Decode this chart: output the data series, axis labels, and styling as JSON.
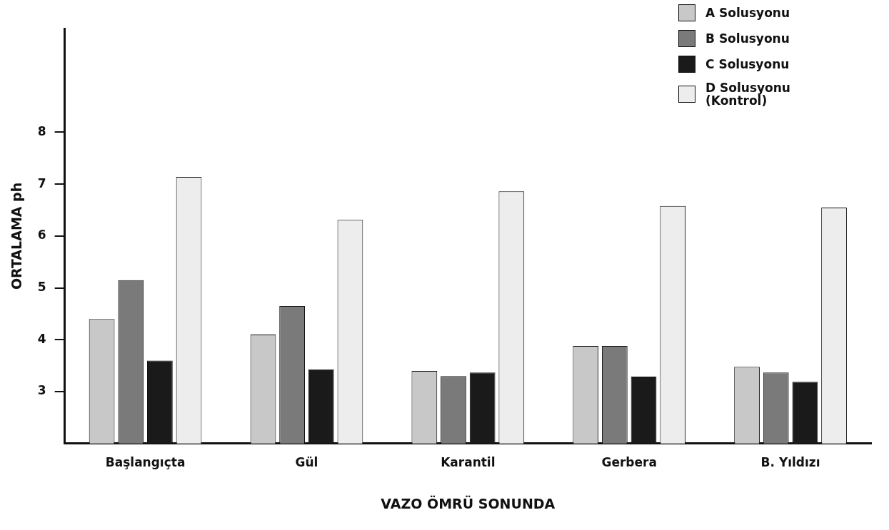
{
  "chart_data": {
    "type": "bar",
    "xlabel": "VAZO ÖMRÜ SONUNDA",
    "ylabel": "ORTALAMA ph",
    "categories": [
      "Başlangıçta",
      "Gül",
      "Karantil",
      "Gerbera",
      "B. Yıldızı"
    ],
    "series": [
      {
        "name": "A Solusyonu",
        "color": "#c8c8c8",
        "values": [
          4.4,
          4.1,
          3.4,
          3.88,
          3.48
        ]
      },
      {
        "name": "B Solusyonu",
        "color": "#7a7a7a",
        "values": [
          5.15,
          4.65,
          3.3,
          3.88,
          3.37
        ]
      },
      {
        "name": "C Solusyonu",
        "color": "#1a1a1a",
        "values": [
          3.6,
          3.43,
          3.37,
          3.29,
          3.19
        ]
      },
      {
        "name": "D Solusyonu (Kontrol)",
        "color": "#ededed",
        "values": [
          7.14,
          6.31,
          6.86,
          6.58,
          6.55
        ]
      }
    ],
    "ylim": [
      2,
      10
    ],
    "yticks": [
      3,
      4,
      5,
      6,
      7,
      8
    ],
    "grid": false,
    "legend": "top right"
  }
}
